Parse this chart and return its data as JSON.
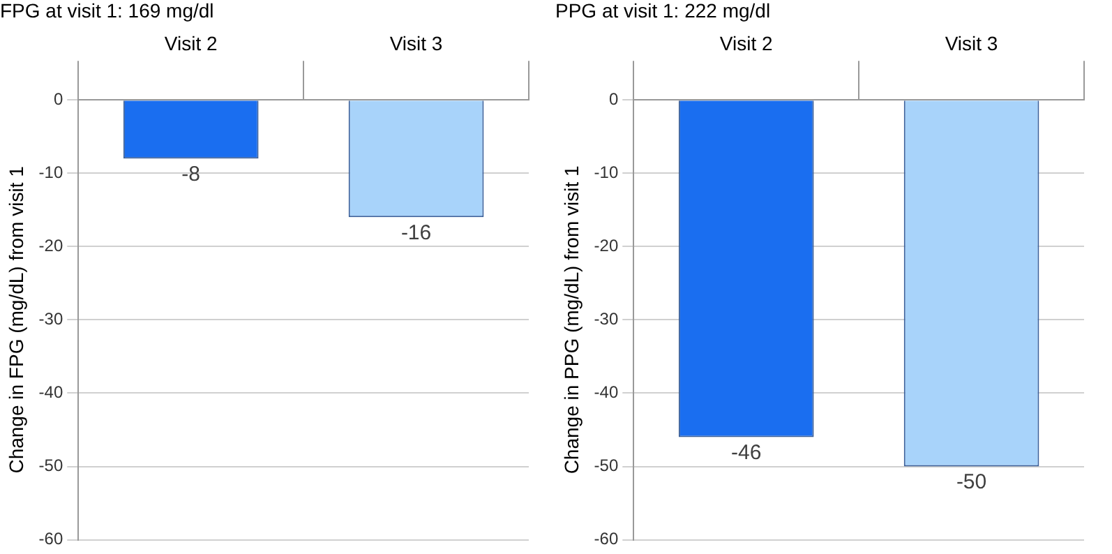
{
  "chart_data": [
    {
      "type": "bar",
      "title": "FPG at visit 1: 169 mg/dl",
      "ylabel": "Change in FPG (mg/dL) from visit 1",
      "categories": [
        "Visit 2",
        "Visit 3"
      ],
      "values": [
        -8,
        -16
      ],
      "colors": [
        "#1a6ef0",
        "#a8d3fa"
      ],
      "ylim": [
        -60,
        0
      ],
      "yticks": [
        -60,
        -50,
        -40,
        -30,
        -20,
        -10,
        0
      ],
      "grid": "y",
      "data_labels": true
    },
    {
      "type": "bar",
      "title": "PPG at visit 1: 222 mg/dl",
      "ylabel": "Change in PPG (mg/dL) from visit 1",
      "categories": [
        "Visit 2",
        "Visit 3"
      ],
      "values": [
        -46,
        -50
      ],
      "colors": [
        "#1a6ef0",
        "#a8d3fa"
      ],
      "ylim": [
        -60,
        0
      ],
      "yticks": [
        -60,
        -50,
        -40,
        -30,
        -20,
        -10,
        0
      ],
      "grid": "y",
      "data_labels": true
    }
  ]
}
